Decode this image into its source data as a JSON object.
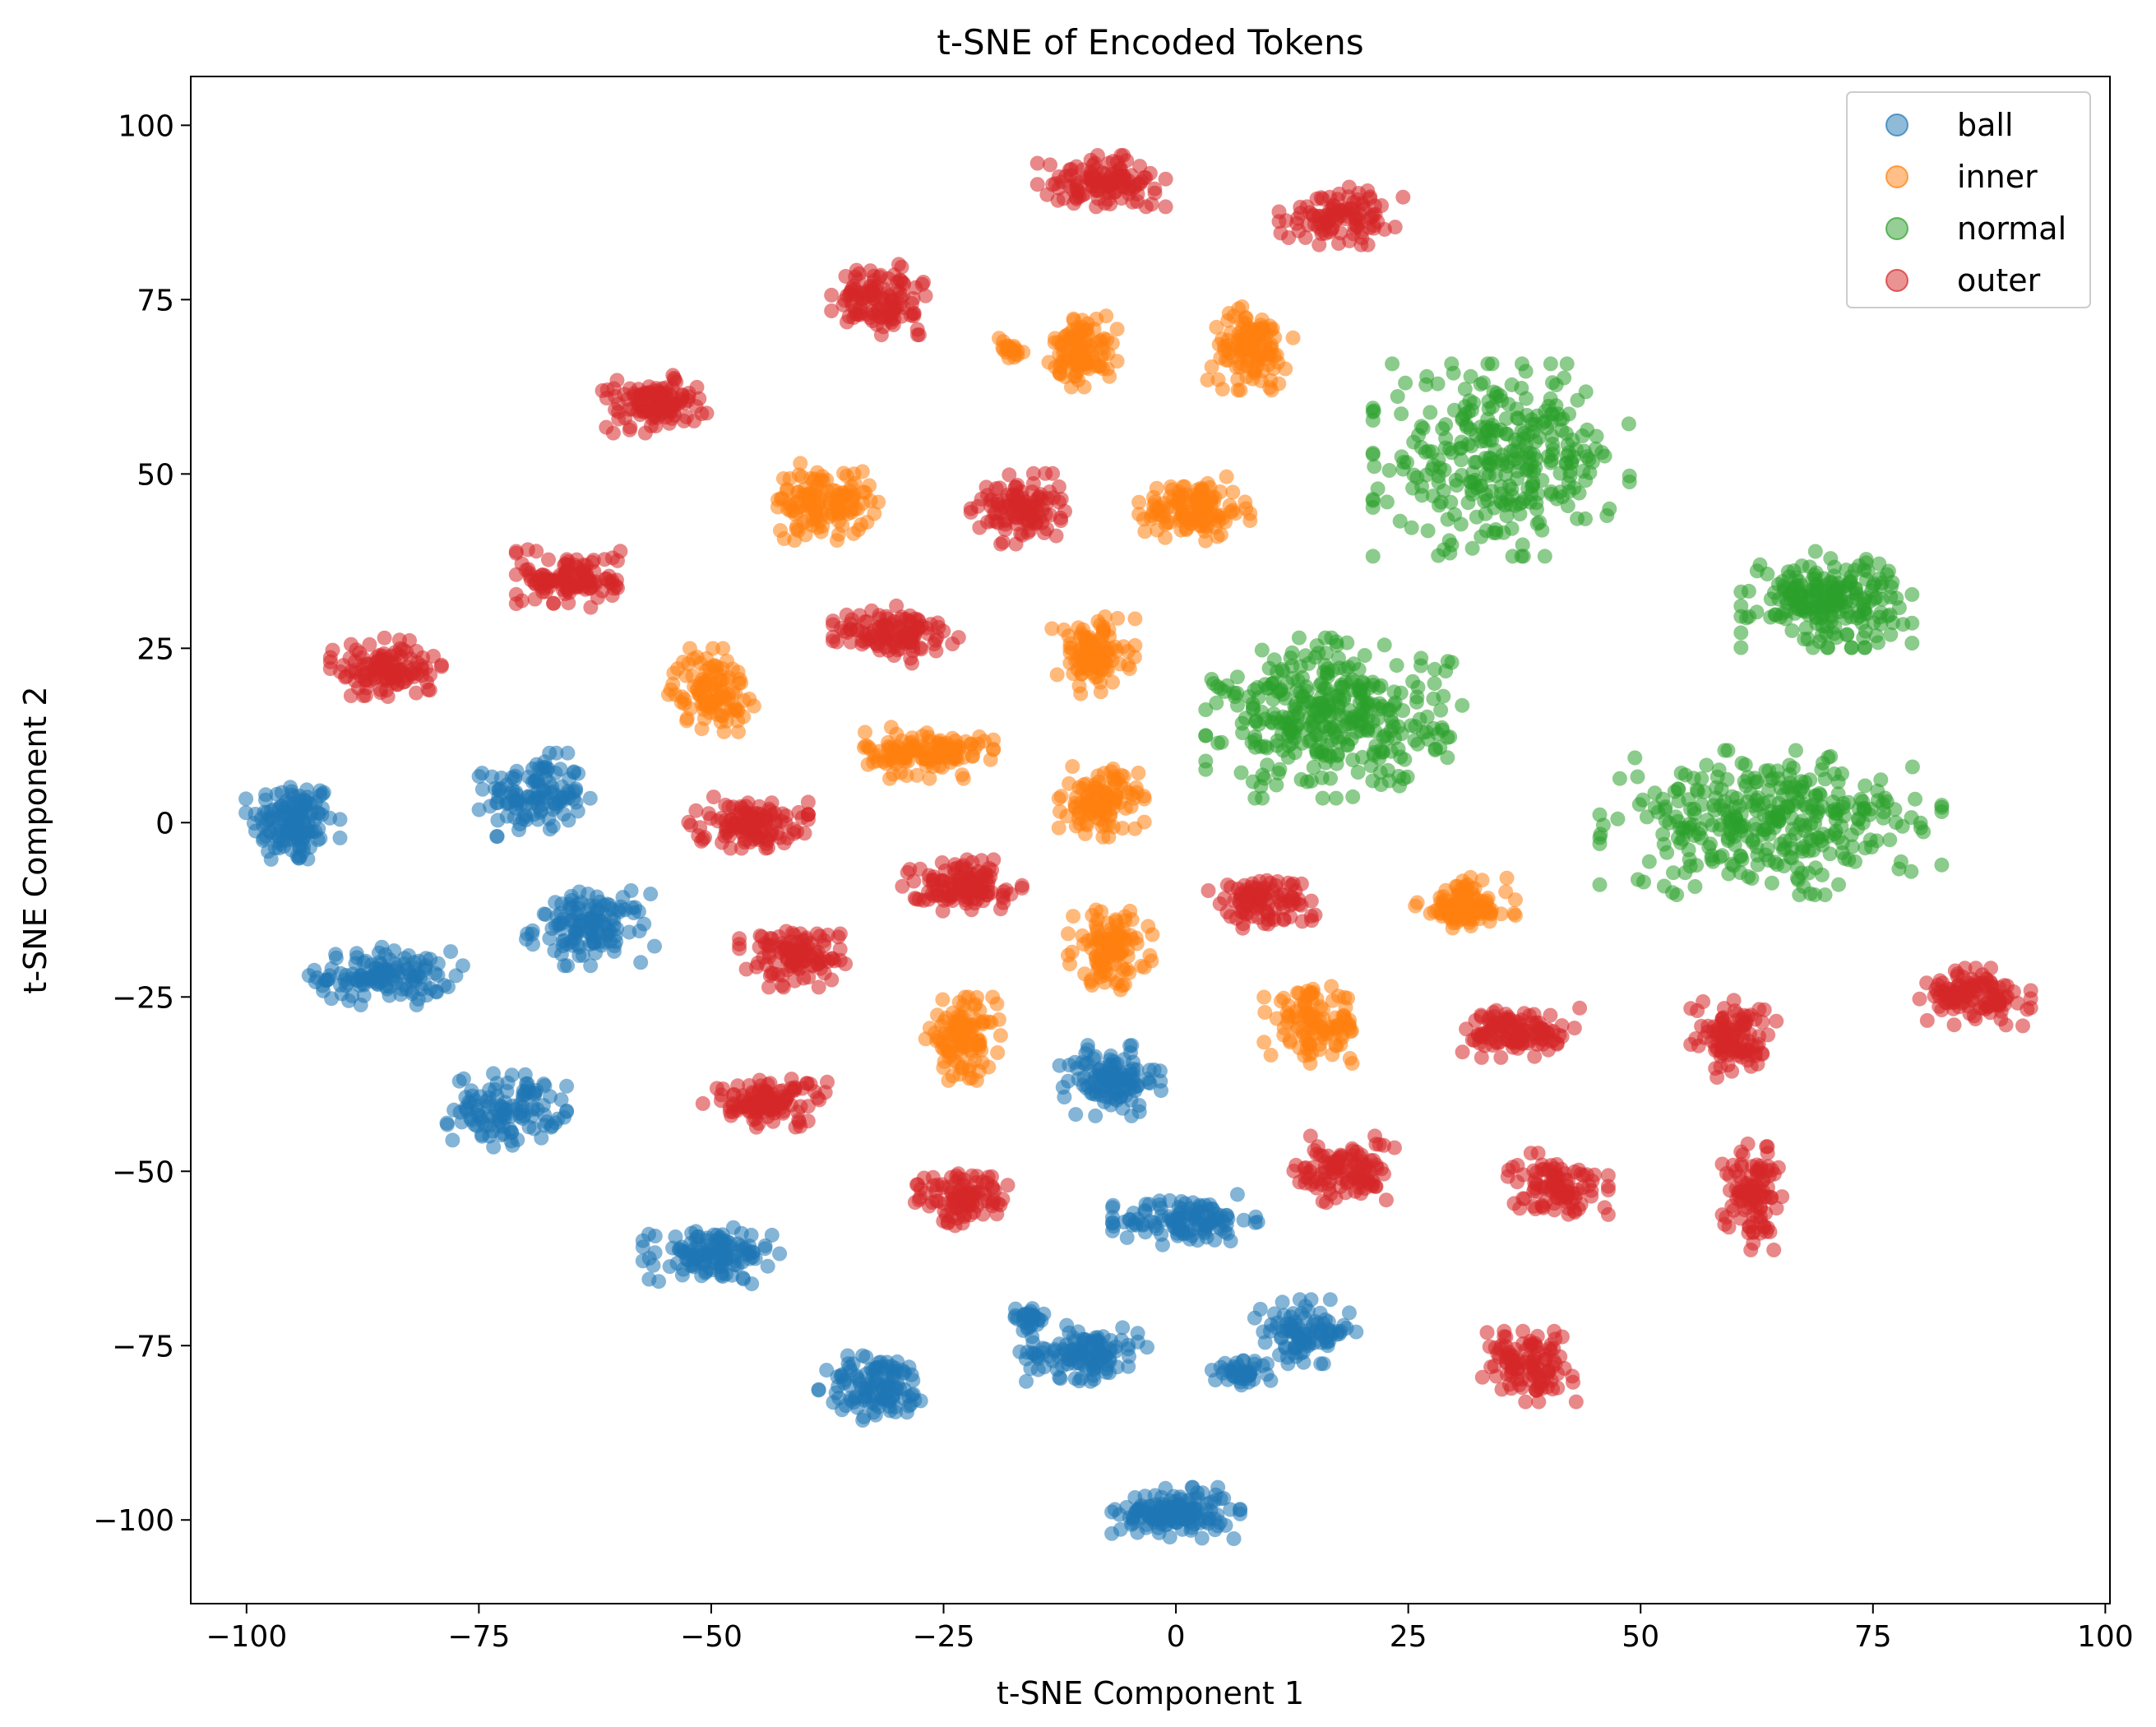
{
  "chart_data": {
    "type": "scatter",
    "title": "t-SNE of Encoded Tokens",
    "xlabel": "t-SNE Component 1",
    "ylabel": "t-SNE Component 2",
    "xlim": [
      -106,
      100.5
    ],
    "ylim": [
      -112,
      107
    ],
    "xticks": [
      -100,
      -75,
      -50,
      -25,
      0,
      25,
      50,
      75,
      100
    ],
    "yticks": [
      -100,
      -75,
      -50,
      -25,
      0,
      25,
      50,
      75,
      100
    ],
    "xtick_labels": [
      "−100",
      "−75",
      "−50",
      "−25",
      "0",
      "25",
      "50",
      "75",
      "100"
    ],
    "ytick_labels": [
      "−100",
      "−75",
      "−50",
      "−25",
      "0",
      "25",
      "50",
      "75",
      "100"
    ],
    "grid": false,
    "legend_position": "top-right",
    "colors": {
      "ball": "#1f77b4",
      "inner": "#ff7f0e",
      "normal": "#2ca02c",
      "outer": "#d62728"
    },
    "series": [
      {
        "name": "ball",
        "color": "#1f77b4",
        "clusters": [
          {
            "cx": -95,
            "cy": 0,
            "sx": 2.2,
            "sy": 3,
            "n": 140
          },
          {
            "cx": -69,
            "cy": 4,
            "sx": 2.6,
            "sy": 2.6,
            "n": 120
          },
          {
            "cx": -85,
            "cy": -22,
            "sx": 3.6,
            "sy": 1.8,
            "n": 130
          },
          {
            "cx": -63,
            "cy": -15,
            "sx": 3,
            "sy": 2.4,
            "n": 130
          },
          {
            "cx": -72,
            "cy": -41,
            "sx": 2.8,
            "sy": 2.4,
            "n": 120
          },
          {
            "cx": -50,
            "cy": -62,
            "sx": 3.2,
            "sy": 1.8,
            "n": 130
          },
          {
            "cx": -7,
            "cy": -37,
            "sx": 2.4,
            "sy": 2.2,
            "n": 120
          },
          {
            "cx": 1,
            "cy": -57,
            "sx": 3.4,
            "sy": 1.6,
            "n": 120
          },
          {
            "cx": -32,
            "cy": -81,
            "sx": 2.8,
            "sy": 2.2,
            "n": 120
          },
          {
            "cx": -10,
            "cy": -76,
            "sx": 3,
            "sy": 1.8,
            "n": 120
          },
          {
            "cx": 14,
            "cy": -73,
            "sx": 2.4,
            "sy": 2,
            "n": 100
          },
          {
            "cx": 7,
            "cy": -79,
            "sx": 1.4,
            "sy": 0.8,
            "n": 40
          },
          {
            "cx": -16,
            "cy": -71,
            "sx": 1,
            "sy": 0.8,
            "n": 30
          },
          {
            "cx": 0,
            "cy": -99,
            "sx": 3,
            "sy": 1.6,
            "n": 150
          }
        ]
      },
      {
        "name": "inner",
        "color": "#ff7f0e",
        "clusters": [
          {
            "cx": -38,
            "cy": 46,
            "sx": 2.6,
            "sy": 2.4,
            "n": 130
          },
          {
            "cx": -50,
            "cy": 19,
            "sx": 2,
            "sy": 2.6,
            "n": 110
          },
          {
            "cx": -27,
            "cy": 10,
            "sx": 3.2,
            "sy": 1.6,
            "n": 130
          },
          {
            "cx": -10,
            "cy": 68,
            "sx": 1.6,
            "sy": 2.4,
            "n": 100
          },
          {
            "cx": -18,
            "cy": 68,
            "sx": 0.8,
            "sy": 0.8,
            "n": 20
          },
          {
            "cx": 8,
            "cy": 68,
            "sx": 2,
            "sy": 2.6,
            "n": 120
          },
          {
            "cx": 2,
            "cy": 45,
            "sx": 2.6,
            "sy": 2,
            "n": 130
          },
          {
            "cx": -9,
            "cy": 24,
            "sx": 2,
            "sy": 2.4,
            "n": 110
          },
          {
            "cx": -8,
            "cy": 3,
            "sx": 2,
            "sy": 2.2,
            "n": 110
          },
          {
            "cx": -7,
            "cy": -18,
            "sx": 2,
            "sy": 2.6,
            "n": 110
          },
          {
            "cx": 31,
            "cy": -12,
            "sx": 2.4,
            "sy": 1.8,
            "n": 110
          },
          {
            "cx": -23,
            "cy": -31,
            "sx": 1.8,
            "sy": 2.6,
            "n": 110
          },
          {
            "cx": 15,
            "cy": -29,
            "sx": 2.4,
            "sy": 2.4,
            "n": 110
          }
        ]
      },
      {
        "name": "normal",
        "color": "#2ca02c",
        "clusters": [
          {
            "cx": 35,
            "cy": 52,
            "sx": 6,
            "sy": 6,
            "n": 320
          },
          {
            "cx": 70,
            "cy": 32,
            "sx": 4,
            "sy": 3,
            "n": 220
          },
          {
            "cx": 17,
            "cy": 15,
            "sx": 6,
            "sy": 5,
            "n": 360
          },
          {
            "cx": 64,
            "cy": 0,
            "sx": 8,
            "sy": 4.5,
            "n": 340
          }
        ]
      },
      {
        "name": "outer",
        "color": "#d62728",
        "clusters": [
          {
            "cx": -8,
            "cy": 92,
            "sx": 3,
            "sy": 1.6,
            "n": 120
          },
          {
            "cx": 18,
            "cy": 87,
            "sx": 3,
            "sy": 1.8,
            "n": 100
          },
          {
            "cx": -32,
            "cy": 75,
            "sx": 2.2,
            "sy": 2.2,
            "n": 120
          },
          {
            "cx": -56,
            "cy": 60,
            "sx": 2.6,
            "sy": 1.8,
            "n": 120
          },
          {
            "cx": -17,
            "cy": 45,
            "sx": 2.2,
            "sy": 2.2,
            "n": 110
          },
          {
            "cx": -65,
            "cy": 35,
            "sx": 2.6,
            "sy": 1.8,
            "n": 120
          },
          {
            "cx": -30,
            "cy": 27,
            "sx": 3,
            "sy": 1.8,
            "n": 120
          },
          {
            "cx": -85,
            "cy": 22,
            "sx": 2.6,
            "sy": 2,
            "n": 120
          },
          {
            "cx": -46,
            "cy": 0,
            "sx": 2.8,
            "sy": 1.6,
            "n": 120
          },
          {
            "cx": -23,
            "cy": -9,
            "sx": 2.8,
            "sy": 1.6,
            "n": 120
          },
          {
            "cx": 9,
            "cy": -11,
            "sx": 2.6,
            "sy": 1.8,
            "n": 100
          },
          {
            "cx": -41,
            "cy": -19,
            "sx": 2.6,
            "sy": 2,
            "n": 110
          },
          {
            "cx": -44,
            "cy": -40,
            "sx": 3,
            "sy": 1.6,
            "n": 120
          },
          {
            "cx": -23,
            "cy": -54,
            "sx": 2.4,
            "sy": 1.8,
            "n": 100
          },
          {
            "cx": 18,
            "cy": -50,
            "sx": 2.4,
            "sy": 2.2,
            "n": 110
          },
          {
            "cx": 37,
            "cy": -30,
            "sx": 2.8,
            "sy": 1.6,
            "n": 120
          },
          {
            "cx": 60,
            "cy": -31,
            "sx": 2,
            "sy": 2.4,
            "n": 110
          },
          {
            "cx": 86,
            "cy": -25,
            "sx": 2.6,
            "sy": 1.8,
            "n": 120
          },
          {
            "cx": 41,
            "cy": -52,
            "sx": 2.4,
            "sy": 2,
            "n": 100
          },
          {
            "cx": 62,
            "cy": -53,
            "sx": 1.4,
            "sy": 3.6,
            "n": 100
          },
          {
            "cx": 38,
            "cy": -78,
            "sx": 2.2,
            "sy": 2.2,
            "n": 110
          }
        ]
      }
    ]
  }
}
